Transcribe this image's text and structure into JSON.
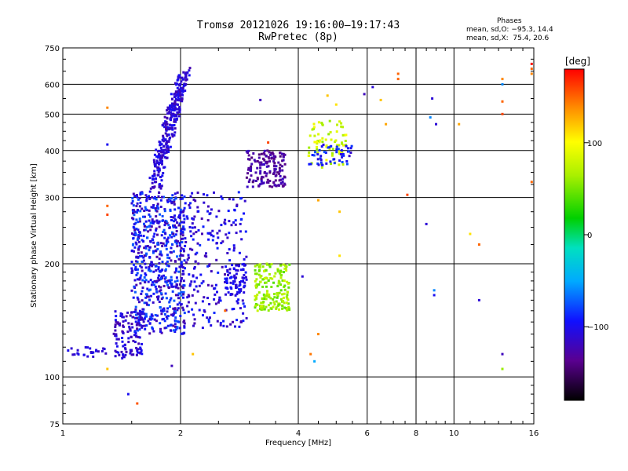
{
  "header": {
    "title": "Tromsø 20121026 19:16:00–19:17:43",
    "subtitle": "RwPretec (8p)"
  },
  "stats": {
    "label": "Phases",
    "line_o": "mean, sd,O: −95.3, 14.4",
    "line_x": "mean, sd,X:  75.4, 20.6"
  },
  "colorbar": {
    "label": "[deg]",
    "range": [
      -180,
      180
    ],
    "ticks": [
      {
        "value": 100,
        "label": "100"
      },
      {
        "value": 0,
        "label": "0"
      },
      {
        "value": -100,
        "label": "−100"
      }
    ]
  },
  "chart_data": {
    "type": "scatter",
    "xlabel": "Frequency [MHz]",
    "ylabel": "Stationary phase Virtual Height [km]",
    "x_scale": "log",
    "y_scale": "log",
    "xlim": [
      1,
      16
    ],
    "ylim": [
      75,
      750
    ],
    "grid": true,
    "x_ticks": [
      1,
      2,
      4,
      6,
      8,
      10,
      16
    ],
    "x_tick_labels": [
      "1",
      "2",
      "4",
      "6",
      "8",
      "10",
      "16"
    ],
    "y_ticks": [
      75,
      100,
      200,
      300,
      400,
      500,
      600,
      750
    ],
    "y_tick_labels": [
      "75",
      "100",
      "200",
      "300",
      "400",
      "500",
      "600",
      "750"
    ],
    "colormap": "rainbow",
    "color_variable": "phase [deg]",
    "clusters": [
      {
        "freq": [
          1.72,
          2.05
        ],
        "height": [
          320,
          640
        ],
        "phase": [
          -125,
          -95
        ],
        "count": 320,
        "trend": 1
      },
      {
        "freq": [
          1.5,
          2.05
        ],
        "height": [
          130,
          310
        ],
        "phase": [
          -130,
          -70
        ],
        "count": 650
      },
      {
        "freq": [
          1.35,
          1.6
        ],
        "height": [
          112,
          150
        ],
        "phase": [
          -130,
          -95
        ],
        "count": 120
      },
      {
        "freq": [
          1.02,
          1.3
        ],
        "height": [
          113,
          120
        ],
        "phase": [
          -120,
          -100
        ],
        "count": 25
      },
      {
        "freq": [
          2.0,
          2.95
        ],
        "height": [
          135,
          310
        ],
        "phase": [
          -125,
          -85
        ],
        "count": 250
      },
      {
        "freq": [
          2.6,
          2.95
        ],
        "height": [
          165,
          200
        ],
        "phase": [
          -115,
          -90
        ],
        "count": 60
      },
      {
        "freq": [
          2.95,
          3.7
        ],
        "height": [
          320,
          400
        ],
        "phase": [
          -145,
          -115
        ],
        "count": 150
      },
      {
        "freq": [
          3.1,
          3.8
        ],
        "height": [
          150,
          200
        ],
        "phase": [
          40,
          80
        ],
        "count": 180
      },
      {
        "freq": [
          4.25,
          5.3
        ],
        "height": [
          360,
          480
        ],
        "phase": [
          55,
          100
        ],
        "count": 70
      },
      {
        "freq": [
          4.25,
          5.5
        ],
        "height": [
          365,
          415
        ],
        "phase": [
          -115,
          -75
        ],
        "count": 50
      }
    ],
    "scattered_points": [
      {
        "x": 1.3,
        "y": 520,
        "phase": 140
      },
      {
        "x": 1.3,
        "y": 285,
        "phase": 150
      },
      {
        "x": 1.3,
        "y": 270,
        "phase": 160
      },
      {
        "x": 1.3,
        "y": 105,
        "phase": 120
      },
      {
        "x": 1.3,
        "y": 415,
        "phase": -100
      },
      {
        "x": 1.47,
        "y": 90,
        "phase": -100
      },
      {
        "x": 1.55,
        "y": 85,
        "phase": 155
      },
      {
        "x": 1.9,
        "y": 107,
        "phase": -120
      },
      {
        "x": 2.15,
        "y": 115,
        "phase": 120
      },
      {
        "x": 2.6,
        "y": 150,
        "phase": 150
      },
      {
        "x": 3.2,
        "y": 545,
        "phase": -120
      },
      {
        "x": 3.35,
        "y": 420,
        "phase": 160
      },
      {
        "x": 4.1,
        "y": 185,
        "phase": -110
      },
      {
        "x": 4.3,
        "y": 115,
        "phase": 145
      },
      {
        "x": 4.4,
        "y": 110,
        "phase": -50
      },
      {
        "x": 4.5,
        "y": 130,
        "phase": 140
      },
      {
        "x": 4.5,
        "y": 295,
        "phase": 130
      },
      {
        "x": 4.75,
        "y": 560,
        "phase": 120
      },
      {
        "x": 5.0,
        "y": 530,
        "phase": 110
      },
      {
        "x": 5.1,
        "y": 275,
        "phase": 120
      },
      {
        "x": 5.1,
        "y": 210,
        "phase": 110
      },
      {
        "x": 5.3,
        "y": 440,
        "phase": 100
      },
      {
        "x": 5.9,
        "y": 565,
        "phase": -120
      },
      {
        "x": 6.2,
        "y": 590,
        "phase": -110
      },
      {
        "x": 6.5,
        "y": 545,
        "phase": 120
      },
      {
        "x": 6.7,
        "y": 470,
        "phase": 130
      },
      {
        "x": 7.2,
        "y": 640,
        "phase": 150
      },
      {
        "x": 7.2,
        "y": 620,
        "phase": 150
      },
      {
        "x": 7.6,
        "y": 305,
        "phase": 160
      },
      {
        "x": 8.5,
        "y": 255,
        "phase": -110
      },
      {
        "x": 8.7,
        "y": 490,
        "phase": -60
      },
      {
        "x": 8.8,
        "y": 550,
        "phase": -110
      },
      {
        "x": 9.0,
        "y": 470,
        "phase": -110
      },
      {
        "x": 8.9,
        "y": 165,
        "phase": -100
      },
      {
        "x": 8.9,
        "y": 170,
        "phase": -60
      },
      {
        "x": 10.3,
        "y": 470,
        "phase": 130
      },
      {
        "x": 11.0,
        "y": 240,
        "phase": 110
      },
      {
        "x": 11.6,
        "y": 225,
        "phase": 150
      },
      {
        "x": 11.6,
        "y": 160,
        "phase": -110
      },
      {
        "x": 13.3,
        "y": 600,
        "phase": -60
      },
      {
        "x": 13.3,
        "y": 620,
        "phase": 140
      },
      {
        "x": 13.3,
        "y": 540,
        "phase": 150
      },
      {
        "x": 13.3,
        "y": 500,
        "phase": 160
      },
      {
        "x": 13.3,
        "y": 115,
        "phase": -120
      },
      {
        "x": 13.3,
        "y": 105,
        "phase": 60
      },
      {
        "x": 15.8,
        "y": 680,
        "phase": 175
      },
      {
        "x": 15.8,
        "y": 660,
        "phase": 150
      },
      {
        "x": 15.8,
        "y": 640,
        "phase": 140
      },
      {
        "x": 15.8,
        "y": 330,
        "phase": 150
      }
    ]
  }
}
